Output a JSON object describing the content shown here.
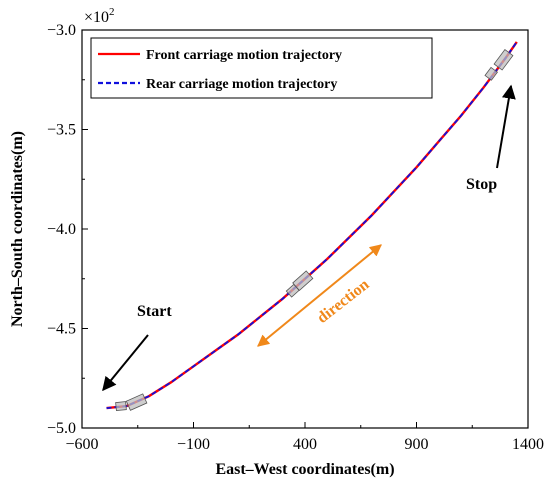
{
  "colors": {
    "front": "#ff0000",
    "rear": "#1010dd",
    "direction": "#f0881a",
    "annotation": "#000000",
    "carriage": "#bdbdbd"
  },
  "chart_data": {
    "type": "line",
    "title": "",
    "xlabel": "East–West coordinates(m)",
    "ylabel": "North–South coordinates(m)",
    "xlim": [
      -600,
      1400
    ],
    "ylim": [
      -500,
      -300
    ],
    "y_multiplier_label": "×10",
    "y_multiplier_exponent": "2",
    "xticks": [
      -600,
      -100,
      400,
      900,
      1400
    ],
    "xtick_labels": [
      "−600",
      "−100",
      "400",
      "900",
      "1400"
    ],
    "yticks": [
      -500,
      -450,
      -400,
      -350,
      -300
    ],
    "ytick_labels": [
      "−5.0",
      "−4.5",
      "−4.0",
      "−3.5",
      "−3.0"
    ],
    "grid": false,
    "legend_position": "top-left",
    "series": [
      {
        "name": "Front carriage motion trajectory",
        "style": "solid",
        "color": "#ff0000",
        "x": [
          -490,
          -400,
          -300,
          -200,
          -100,
          0,
          100,
          200,
          300,
          400,
          500,
          600,
          700,
          800,
          900,
          1000,
          1100,
          1200,
          1300,
          1350
        ],
        "y": [
          -490,
          -489,
          -484,
          -477,
          -469,
          -461,
          -453,
          -444,
          -435,
          -425,
          -415,
          -404,
          -393,
          -381,
          -369,
          -356,
          -343,
          -329,
          -314,
          -306
        ]
      },
      {
        "name": "Rear carriage motion trajectory",
        "style": "dashed",
        "color": "#1010dd",
        "x": [
          -490,
          -400,
          -300,
          -200,
          -100,
          0,
          100,
          200,
          300,
          400,
          500,
          600,
          700,
          800,
          900,
          1000,
          1100,
          1200,
          1300,
          1350
        ],
        "y": [
          -490,
          -489,
          -484,
          -477,
          -469,
          -461,
          -453,
          -444,
          -435,
          -425,
          -415,
          -404,
          -393,
          -381,
          -369,
          -356,
          -343,
          -329,
          -314,
          -306
        ]
      }
    ],
    "annotations": [
      {
        "text": "Start",
        "x": -490,
        "y": -490
      },
      {
        "text": "Stop",
        "x": 1350,
        "y": -306
      },
      {
        "text": "direction"
      }
    ],
    "carriages": [
      {
        "x": -355,
        "y": -487
      },
      {
        "x": -425,
        "y": -489
      },
      {
        "x": 390,
        "y": -426
      },
      {
        "x": 345,
        "y": -431
      },
      {
        "x": 1290,
        "y": -315
      },
      {
        "x": 1235,
        "y": -322
      }
    ]
  }
}
